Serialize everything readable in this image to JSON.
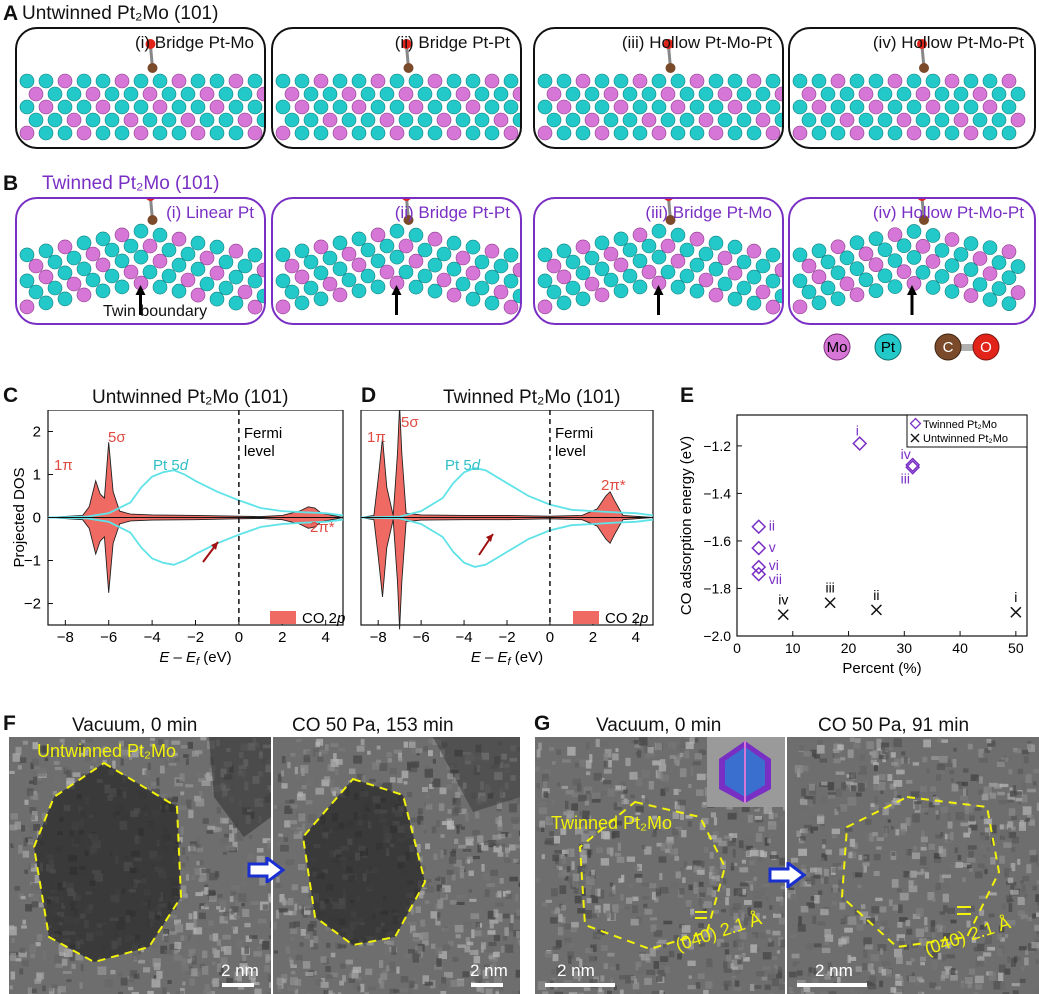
{
  "panelA": {
    "label": "A",
    "title": "Untwinned Pt₂Mo (101)",
    "boxes": [
      "(i) Bridge Pt-Mo",
      "(ii) Bridge Pt-Pt",
      "(iii) Hollow Pt-Mo-Pt",
      "(iv) Hollow Pt-Mo-Pt"
    ]
  },
  "panelB": {
    "label": "B",
    "title": "Twinned Pt₂Mo (101)",
    "boxes": [
      "(i) Linear Pt",
      "(ii) Bridge Pt-Pt",
      "(iii) Bridge Pt-Mo",
      "(iv) Hollow Pt-Mo-Pt"
    ],
    "twin_label": "Twin boundary"
  },
  "legend_atoms": {
    "mo": "Mo",
    "pt": "Pt",
    "c": "C",
    "o": "O"
  },
  "colors": {
    "mo": "#d676d6",
    "pt": "#23c9c9",
    "purple": "#7a2fc4",
    "co_fill": "#ef6a63",
    "pt5d": "#5fe3e8",
    "yellow": "#f2f20a"
  },
  "panelC": {
    "label": "C",
    "title": "Untwinned Pt₂Mo (101)",
    "ylabel": "Projected DOS",
    "xlabel": "E – E",
    "xlabel_sub": "f",
    "xlabel_unit": " (eV)",
    "xticks": [
      "−8",
      "−6",
      "−4",
      "−2",
      "0",
      "2",
      "4"
    ],
    "yticks": [
      "2",
      "1",
      "0",
      "−1",
      "−2"
    ],
    "annotations": {
      "pi1": "1π",
      "sigma5": "5σ",
      "pt5d": "Pt 5",
      "pt5d_d": "d",
      "fermi1": "Fermi",
      "fermi2": "level",
      "pi2": "2π*"
    },
    "legend": "CO 2",
    "legend_p": "p"
  },
  "panelD": {
    "label": "D",
    "title": "Twinned Pt₂Mo (101)",
    "xlabel": "E – E",
    "xlabel_sub": "f",
    "xlabel_unit": " (eV)",
    "xticks": [
      "−8",
      "−6",
      "−4",
      "−2",
      "0",
      "2",
      "4"
    ],
    "annotations": {
      "pi1": "1π",
      "sigma5": "5σ",
      "pt5d": "Pt 5",
      "pt5d_d": "d",
      "fermi1": "Fermi",
      "fermi2": "level",
      "pi2": "2π*"
    },
    "legend": "CO 2",
    "legend_p": "p"
  },
  "panelE": {
    "label": "E",
    "xticks": [
      "0",
      "10",
      "20",
      "30",
      "40",
      "50"
    ],
    "yticks": [
      "−1.2",
      "−1.4",
      "−1.6",
      "−1.8",
      "−2.0"
    ],
    "legend_twinned": "Twinned Pt₂Mo",
    "legend_untwinned": "Untwinned Pt₂Mo"
  },
  "chart_data": [
    {
      "type": "area",
      "title": "Untwinned Pt₂Mo (101)",
      "xlabel": "E – Ef (eV)",
      "ylabel": "Projected DOS",
      "xlim": [
        -8.8,
        4.8
      ],
      "ylim": [
        -2.5,
        2.5
      ],
      "series": [
        {
          "name": "CO 2p",
          "x": [
            -8.8,
            -7.2,
            -6.9,
            -6.6,
            -6.4,
            -6.2,
            -6.0,
            -5.8,
            -5.5,
            -5,
            -4,
            -2,
            0,
            1,
            2,
            2.8,
            3.2,
            3.5,
            3.8,
            4.8
          ],
          "y": [
            0,
            0.05,
            0.25,
            0.85,
            0.55,
            0.45,
            1.75,
            0.6,
            0.15,
            0.08,
            0.06,
            0.05,
            0.03,
            0.02,
            0.05,
            0.15,
            0.25,
            0.22,
            0.1,
            0
          ]
        },
        {
          "name": "Pt 5d",
          "x": [
            -8.8,
            -7,
            -6,
            -5,
            -4.5,
            -4,
            -3.5,
            -3,
            -2.5,
            -2,
            -1,
            0,
            1,
            2,
            3,
            4,
            4.8
          ],
          "y": [
            0,
            0.02,
            0.1,
            0.35,
            0.7,
            0.95,
            1.05,
            1.1,
            1.0,
            0.85,
            0.6,
            0.4,
            0.22,
            0.15,
            0.12,
            0.1,
            0.05
          ]
        }
      ]
    },
    {
      "type": "area",
      "title": "Twinned Pt₂Mo (101)",
      "xlabel": "E – Ef (eV)",
      "xlim": [
        -8.8,
        4.8
      ],
      "ylim": [
        -2.5,
        2.5
      ],
      "series": [
        {
          "name": "CO 2p",
          "x": [
            -8.8,
            -8.2,
            -8.0,
            -7.8,
            -7.6,
            -7.3,
            -7.1,
            -7.0,
            -6.9,
            -6.7,
            -6,
            -4,
            -2,
            0,
            1.5,
            2.2,
            2.6,
            2.8,
            3.0,
            3.4,
            4.8
          ],
          "y": [
            0,
            0.05,
            0.9,
            1.85,
            0.7,
            0.05,
            1.5,
            2.6,
            1.5,
            0.1,
            0.06,
            0.05,
            0.05,
            0.03,
            0.05,
            0.2,
            0.5,
            0.6,
            0.4,
            0.05,
            0
          ]
        },
        {
          "name": "Pt 5d",
          "x": [
            -8.8,
            -7,
            -6,
            -5,
            -4.5,
            -4,
            -3.5,
            -3,
            -2.5,
            -2,
            -1,
            0,
            1,
            2,
            3,
            4,
            4.8
          ],
          "y": [
            0,
            0.02,
            0.15,
            0.45,
            0.8,
            1.05,
            1.15,
            1.1,
            0.95,
            0.8,
            0.5,
            0.3,
            0.18,
            0.15,
            0.12,
            0.1,
            0.05
          ]
        }
      ]
    },
    {
      "type": "scatter",
      "xlabel": "Percent (%)",
      "ylabel": "CO adsorption energy (eV)",
      "xlim": [
        0,
        52
      ],
      "ylim": [
        -2.0,
        -1.07
      ],
      "series": [
        {
          "name": "Twinned Pt₂Mo",
          "points": [
            {
              "label": "i",
              "x": 22,
              "y": -1.19
            },
            {
              "label": "iv",
              "x": 31.5,
              "y": -1.28
            },
            {
              "label": "iii",
              "x": 31.5,
              "y": -1.29
            },
            {
              "label": "ii",
              "x": 3.9,
              "y": -1.54
            },
            {
              "label": "v",
              "x": 3.9,
              "y": -1.63
            },
            {
              "label": "vi",
              "x": 3.9,
              "y": -1.71
            },
            {
              "label": "vii",
              "x": 3.9,
              "y": -1.74
            }
          ]
        },
        {
          "name": "Untwinned Pt₂Mo",
          "points": [
            {
              "label": "iv",
              "x": 8.3,
              "y": -1.91
            },
            {
              "label": "iii",
              "x": 16.7,
              "y": -1.86
            },
            {
              "label": "ii",
              "x": 25,
              "y": -1.89
            },
            {
              "label": "i",
              "x": 50,
              "y": -1.9
            }
          ]
        }
      ]
    }
  ],
  "panelF": {
    "label": "F",
    "cap1": "Vacuum, 0 min",
    "cap2": "CO 50 Pa, 153 min",
    "overlay": "Untwinned Pt₂Mo",
    "scale": "2 nm"
  },
  "panelG": {
    "label": "G",
    "cap1": "Vacuum, 0 min",
    "cap2": "CO 50 Pa, 91 min",
    "overlay": "Twinned Pt₂Mo",
    "lattice": "(040) 2.1 Å",
    "scale": "2 nm"
  }
}
